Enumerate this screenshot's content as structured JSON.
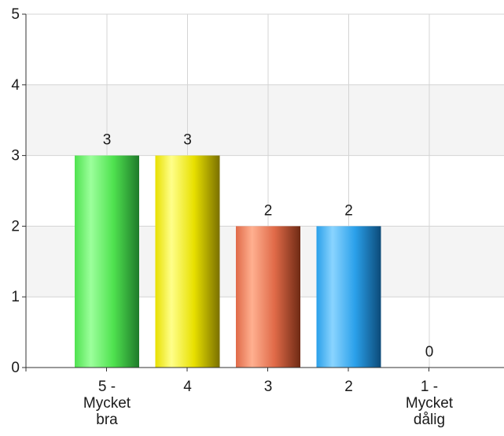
{
  "chart_data": {
    "type": "bar",
    "categories": [
      [
        "5 -",
        "Mycket",
        "bra"
      ],
      [
        "4"
      ],
      [
        "3"
      ],
      [
        "2"
      ],
      [
        "1 -",
        "Mycket",
        "dålig"
      ]
    ],
    "values": [
      3,
      3,
      2,
      2,
      0
    ],
    "data_labels": [
      "3",
      "3",
      "2",
      "2",
      "0"
    ],
    "ylim": [
      0,
      5
    ],
    "yticks": [
      "0",
      "1",
      "2",
      "3",
      "4",
      "5"
    ],
    "grid": true,
    "alternating_bands": true,
    "bar_colors": [
      {
        "dark": "#1e7a2a",
        "mid": "#4fe24f",
        "light": "#9cff9c"
      },
      {
        "dark": "#7a7000",
        "mid": "#e8e000",
        "light": "#ffff8a"
      },
      {
        "dark": "#6e2a14",
        "mid": "#e06a48",
        "light": "#ffb090"
      },
      {
        "dark": "#0c4a78",
        "mid": "#2aa0ea",
        "light": "#8ad4ff"
      },
      {
        "dark": "#444444",
        "mid": "#888888",
        "light": "#cccccc"
      }
    ],
    "title": "",
    "xlabel": "",
    "ylabel": ""
  }
}
